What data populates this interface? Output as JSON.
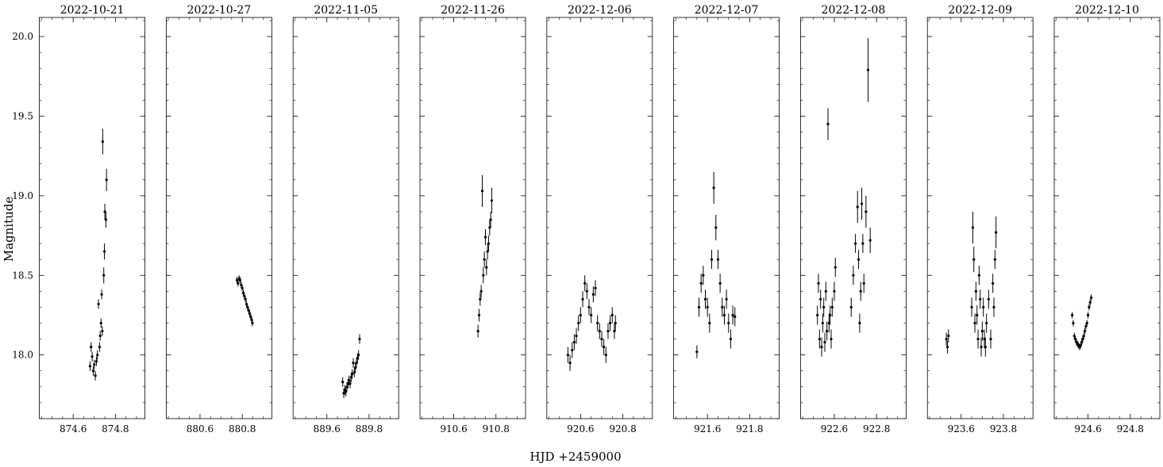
{
  "chart_data": {
    "type": "scatter",
    "xlabel": "HJD +2459000",
    "ylabel": "Magnitude",
    "ylim": [
      17.6,
      20.12
    ],
    "y_inverted": false,
    "y_ticks": [
      "18.0",
      "18.5",
      "19.0",
      "19.5",
      "20.0"
    ],
    "y_tick_values": [
      18.0,
      18.5,
      19.0,
      19.5,
      20.0
    ],
    "grid": false,
    "marker_color": "#000000",
    "panels": [
      {
        "title": "2022-10-21",
        "xlim": [
          874.44,
          874.94
        ],
        "ticks": [
          "874.6",
          "874.8"
        ],
        "tick_values": [
          874.6,
          874.8
        ],
        "points": [
          [
            874.68,
            17.93,
            0.03
          ],
          [
            874.685,
            18.05,
            0.03
          ],
          [
            874.69,
            17.99,
            0.03
          ],
          [
            874.695,
            17.9,
            0.03
          ],
          [
            874.7,
            17.94,
            0.03
          ],
          [
            874.705,
            17.87,
            0.03
          ],
          [
            874.71,
            17.96,
            0.03
          ],
          [
            874.715,
            18.0,
            0.03
          ],
          [
            874.72,
            18.32,
            0.03
          ],
          [
            874.725,
            18.05,
            0.03
          ],
          [
            874.728,
            18.12,
            0.03
          ],
          [
            874.732,
            18.2,
            0.03
          ],
          [
            874.735,
            18.38,
            0.03
          ],
          [
            874.738,
            18.15,
            0.03
          ],
          [
            874.74,
            19.34,
            0.08
          ],
          [
            874.745,
            18.5,
            0.05
          ],
          [
            874.748,
            18.65,
            0.05
          ],
          [
            874.75,
            18.9,
            0.05
          ],
          [
            874.755,
            18.85,
            0.05
          ],
          [
            874.758,
            19.1,
            0.07
          ]
        ]
      },
      {
        "title": "2022-10-27",
        "xlim": [
          880.44,
          880.94
        ],
        "ticks": [
          "880.6",
          "880.8"
        ],
        "tick_values": [
          880.6,
          880.8
        ],
        "points": [
          [
            880.775,
            18.47,
            0.02
          ],
          [
            880.78,
            18.45,
            0.02
          ],
          [
            880.785,
            18.48,
            0.02
          ],
          [
            880.79,
            18.47,
            0.02
          ],
          [
            880.795,
            18.44,
            0.02
          ],
          [
            880.8,
            18.42,
            0.02
          ],
          [
            880.805,
            18.39,
            0.02
          ],
          [
            880.81,
            18.37,
            0.02
          ],
          [
            880.815,
            18.35,
            0.02
          ],
          [
            880.82,
            18.32,
            0.02
          ],
          [
            880.825,
            18.3,
            0.02
          ],
          [
            880.83,
            18.28,
            0.02
          ],
          [
            880.835,
            18.26,
            0.02
          ],
          [
            880.84,
            18.24,
            0.02
          ],
          [
            880.845,
            18.22,
            0.02
          ],
          [
            880.848,
            18.2,
            0.02
          ]
        ]
      },
      {
        "title": "2022-11-05",
        "xlim": [
          889.44,
          889.94
        ],
        "ticks": [
          "889.6",
          "889.8"
        ],
        "tick_values": [
          889.6,
          889.8
        ],
        "points": [
          [
            889.675,
            17.83,
            0.03
          ],
          [
            889.68,
            17.76,
            0.03
          ],
          [
            889.685,
            17.78,
            0.03
          ],
          [
            889.69,
            17.77,
            0.03
          ],
          [
            889.695,
            17.8,
            0.03
          ],
          [
            889.7,
            17.82,
            0.03
          ],
          [
            889.705,
            17.84,
            0.03
          ],
          [
            889.71,
            17.82,
            0.03
          ],
          [
            889.715,
            17.86,
            0.03
          ],
          [
            889.72,
            17.88,
            0.03
          ],
          [
            889.725,
            17.95,
            0.03
          ],
          [
            889.73,
            17.89,
            0.03
          ],
          [
            889.735,
            17.92,
            0.03
          ],
          [
            889.74,
            17.95,
            0.03
          ],
          [
            889.745,
            17.98,
            0.03
          ],
          [
            889.75,
            18.0,
            0.03
          ],
          [
            889.755,
            18.1,
            0.03
          ]
        ]
      },
      {
        "title": "2022-11-26",
        "xlim": [
          910.44,
          910.94
        ],
        "ticks": [
          "910.6",
          "910.8"
        ],
        "tick_values": [
          910.6,
          910.8
        ],
        "points": [
          [
            910.715,
            18.15,
            0.04
          ],
          [
            910.72,
            18.25,
            0.04
          ],
          [
            910.725,
            18.35,
            0.04
          ],
          [
            910.73,
            18.4,
            0.04
          ],
          [
            910.735,
            19.03,
            0.1
          ],
          [
            910.74,
            18.5,
            0.05
          ],
          [
            910.745,
            18.6,
            0.05
          ],
          [
            910.75,
            18.74,
            0.05
          ],
          [
            910.755,
            18.55,
            0.05
          ],
          [
            910.76,
            18.65,
            0.05
          ],
          [
            910.765,
            18.7,
            0.05
          ],
          [
            910.77,
            18.8,
            0.05
          ],
          [
            910.775,
            18.85,
            0.05
          ],
          [
            910.78,
            18.97,
            0.08
          ]
        ]
      },
      {
        "title": "2022-12-06",
        "xlim": [
          920.44,
          920.94
        ],
        "ticks": [
          "920.6",
          "920.8"
        ],
        "tick_values": [
          920.6,
          920.8
        ],
        "points": [
          [
            920.54,
            18.0,
            0.05
          ],
          [
            920.55,
            17.95,
            0.05
          ],
          [
            920.56,
            18.03,
            0.05
          ],
          [
            920.57,
            18.08,
            0.05
          ],
          [
            920.58,
            18.12,
            0.05
          ],
          [
            920.59,
            18.2,
            0.05
          ],
          [
            920.6,
            18.25,
            0.05
          ],
          [
            920.61,
            18.35,
            0.05
          ],
          [
            920.62,
            18.45,
            0.05
          ],
          [
            920.63,
            18.4,
            0.05
          ],
          [
            920.64,
            18.3,
            0.05
          ],
          [
            920.65,
            18.25,
            0.05
          ],
          [
            920.66,
            18.38,
            0.05
          ],
          [
            920.67,
            18.42,
            0.05
          ],
          [
            920.68,
            18.2,
            0.05
          ],
          [
            920.69,
            18.15,
            0.05
          ],
          [
            920.7,
            18.1,
            0.05
          ],
          [
            920.71,
            18.05,
            0.05
          ],
          [
            920.72,
            18.0,
            0.05
          ],
          [
            920.73,
            18.15,
            0.05
          ],
          [
            920.74,
            18.2,
            0.05
          ],
          [
            920.75,
            18.25,
            0.05
          ],
          [
            920.76,
            18.15,
            0.05
          ],
          [
            920.765,
            18.2,
            0.05
          ]
        ]
      },
      {
        "title": "2022-12-07",
        "xlim": [
          921.44,
          921.94
        ],
        "ticks": [
          "921.6",
          "921.8"
        ],
        "tick_values": [
          921.6,
          921.8
        ],
        "points": [
          [
            921.55,
            18.02,
            0.04
          ],
          [
            921.56,
            18.3,
            0.06
          ],
          [
            921.57,
            18.45,
            0.06
          ],
          [
            921.58,
            18.5,
            0.06
          ],
          [
            921.59,
            18.35,
            0.06
          ],
          [
            921.6,
            18.3,
            0.06
          ],
          [
            921.61,
            18.2,
            0.06
          ],
          [
            921.62,
            18.6,
            0.06
          ],
          [
            921.63,
            19.05,
            0.1
          ],
          [
            921.64,
            18.8,
            0.08
          ],
          [
            921.65,
            18.6,
            0.06
          ],
          [
            921.66,
            18.45,
            0.06
          ],
          [
            921.67,
            18.3,
            0.06
          ],
          [
            921.68,
            18.25,
            0.06
          ],
          [
            921.69,
            18.35,
            0.06
          ],
          [
            921.7,
            18.2,
            0.06
          ],
          [
            921.71,
            18.1,
            0.06
          ],
          [
            921.72,
            18.25,
            0.06
          ],
          [
            921.73,
            18.24,
            0.06
          ]
        ]
      },
      {
        "title": "2022-12-08",
        "xlim": [
          922.44,
          922.94
        ],
        "ticks": [
          "922.6",
          "922.8"
        ],
        "tick_values": [
          922.6,
          922.8
        ],
        "points": [
          [
            922.52,
            18.25,
            0.06
          ],
          [
            922.525,
            18.45,
            0.06
          ],
          [
            922.53,
            18.1,
            0.06
          ],
          [
            922.535,
            18.35,
            0.06
          ],
          [
            922.54,
            18.05,
            0.06
          ],
          [
            922.545,
            18.2,
            0.06
          ],
          [
            922.55,
            18.3,
            0.06
          ],
          [
            922.555,
            18.08,
            0.06
          ],
          [
            922.56,
            18.4,
            0.06
          ],
          [
            922.565,
            18.15,
            0.06
          ],
          [
            922.57,
            19.45,
            0.1
          ],
          [
            922.575,
            18.2,
            0.06
          ],
          [
            922.58,
            18.25,
            0.06
          ],
          [
            922.585,
            18.1,
            0.06
          ],
          [
            922.59,
            18.3,
            0.06
          ],
          [
            922.6,
            18.4,
            0.06
          ],
          [
            922.605,
            18.55,
            0.06
          ],
          [
            922.68,
            18.3,
            0.06
          ],
          [
            922.69,
            18.5,
            0.06
          ],
          [
            922.7,
            18.7,
            0.06
          ],
          [
            922.71,
            18.93,
            0.1
          ],
          [
            922.715,
            18.6,
            0.06
          ],
          [
            922.72,
            18.2,
            0.06
          ],
          [
            922.725,
            18.4,
            0.06
          ],
          [
            922.73,
            18.95,
            0.1
          ],
          [
            922.735,
            18.7,
            0.06
          ],
          [
            922.74,
            18.45,
            0.06
          ],
          [
            922.75,
            18.9,
            0.1
          ],
          [
            922.76,
            19.79,
            0.2
          ],
          [
            922.77,
            18.72,
            0.08
          ]
        ]
      },
      {
        "title": "2022-12-09",
        "xlim": [
          923.44,
          923.94
        ],
        "ticks": [
          "923.6",
          "923.8"
        ],
        "tick_values": [
          923.6,
          923.8
        ],
        "points": [
          [
            923.53,
            18.1,
            0.04
          ],
          [
            923.535,
            18.05,
            0.04
          ],
          [
            923.54,
            18.12,
            0.04
          ],
          [
            923.65,
            18.3,
            0.06
          ],
          [
            923.655,
            18.8,
            0.1
          ],
          [
            923.66,
            18.6,
            0.08
          ],
          [
            923.665,
            18.2,
            0.06
          ],
          [
            923.67,
            18.4,
            0.06
          ],
          [
            923.675,
            18.25,
            0.06
          ],
          [
            923.68,
            18.1,
            0.06
          ],
          [
            923.685,
            18.5,
            0.06
          ],
          [
            923.69,
            18.35,
            0.06
          ],
          [
            923.695,
            18.05,
            0.06
          ],
          [
            923.7,
            18.15,
            0.06
          ],
          [
            923.705,
            18.3,
            0.06
          ],
          [
            923.71,
            18.1,
            0.06
          ],
          [
            923.715,
            18.05,
            0.06
          ],
          [
            923.72,
            18.2,
            0.06
          ],
          [
            923.73,
            18.35,
            0.06
          ],
          [
            923.74,
            18.1,
            0.06
          ],
          [
            923.75,
            18.45,
            0.06
          ],
          [
            923.755,
            18.3,
            0.06
          ],
          [
            923.76,
            18.6,
            0.06
          ],
          [
            923.765,
            18.77,
            0.1
          ]
        ]
      },
      {
        "title": "2022-12-10",
        "xlim": [
          924.44,
          924.94
        ],
        "ticks": [
          "924.6",
          "924.8"
        ],
        "tick_values": [
          924.6,
          924.8
        ],
        "points": [
          [
            924.525,
            18.25,
            0.02
          ],
          [
            924.53,
            18.2,
            0.02
          ],
          [
            924.535,
            18.12,
            0.02
          ],
          [
            924.54,
            18.1,
            0.02
          ],
          [
            924.545,
            18.08,
            0.02
          ],
          [
            924.55,
            18.07,
            0.02
          ],
          [
            924.555,
            18.06,
            0.02
          ],
          [
            924.56,
            18.05,
            0.02
          ],
          [
            924.565,
            18.06,
            0.02
          ],
          [
            924.57,
            18.08,
            0.02
          ],
          [
            924.575,
            18.1,
            0.02
          ],
          [
            924.58,
            18.12,
            0.02
          ],
          [
            924.585,
            18.15,
            0.02
          ],
          [
            924.59,
            18.18,
            0.02
          ],
          [
            924.595,
            18.2,
            0.02
          ],
          [
            924.6,
            18.25,
            0.02
          ],
          [
            924.605,
            18.3,
            0.02
          ],
          [
            924.61,
            18.33,
            0.02
          ],
          [
            924.615,
            18.36,
            0.02
          ]
        ]
      }
    ]
  }
}
